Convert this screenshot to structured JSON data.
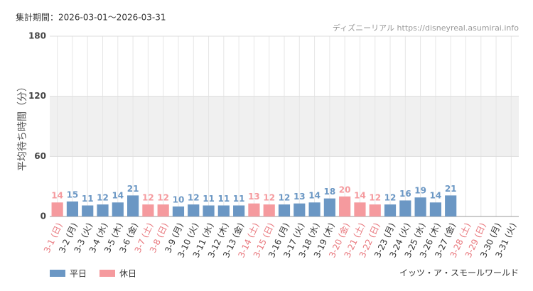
{
  "chart_data": {
    "type": "bar",
    "title": "集計期間：2026-03-01～2026-03-31",
    "source": "ディズニーリアル https://disneyreal.asumirai.info",
    "subtitle": "イッツ・ア・スモールワールド",
    "y_label": "平均待ち時間（分）",
    "categories": [
      "3-1 (日)",
      "3-2 (月)",
      "3-3 (火)",
      "3-4 (水)",
      "3-5 (木)",
      "3-6 (金)",
      "3-7 (土)",
      "3-8 (日)",
      "3-9 (月)",
      "3-10 (火)",
      "3-11 (水)",
      "3-12 (木)",
      "3-13 (金)",
      "3-14 (土)",
      "3-15 (日)",
      "3-16 (月)",
      "3-17 (火)",
      "3-18 (水)",
      "3-19 (木)",
      "3-20 (金)",
      "3-21 (土)",
      "3-22 (日)",
      "3-23 (月)",
      "3-24 (火)",
      "3-25 (水)",
      "3-26 (木)",
      "3-27 (金)",
      "3-28 (土)",
      "3-29 (日)",
      "3-30 (月)",
      "3-31 (火)"
    ],
    "category_colors": [
      "#e8767c",
      "#333333",
      "#333333",
      "#333333",
      "#333333",
      "#333333",
      "#e8767c",
      "#e8767c",
      "#333333",
      "#333333",
      "#333333",
      "#333333",
      "#333333",
      "#e8767c",
      "#e8767c",
      "#333333",
      "#333333",
      "#333333",
      "#333333",
      "#e8767c",
      "#e8767c",
      "#e8767c",
      "#333333",
      "#333333",
      "#333333",
      "#333333",
      "#333333",
      "#e8767c",
      "#e8767c",
      "#333333",
      "#333333"
    ],
    "series": [
      {
        "name": "平日",
        "color": "#6b97c4",
        "values": [
          null,
          15,
          11,
          12,
          14,
          21,
          null,
          null,
          10,
          12,
          11,
          11,
          11,
          null,
          null,
          12,
          13,
          14,
          18,
          null,
          null,
          null,
          12,
          16,
          19,
          14,
          21,
          null,
          null,
          null,
          null
        ]
      },
      {
        "name": "休日",
        "color": "#f59a9e",
        "values": [
          14,
          null,
          null,
          null,
          null,
          null,
          12,
          12,
          null,
          null,
          null,
          null,
          null,
          13,
          12,
          null,
          null,
          null,
          null,
          20,
          14,
          12,
          null,
          null,
          null,
          null,
          null,
          null,
          null,
          null,
          null
        ]
      }
    ],
    "ylim": [
      0,
      180
    ],
    "yticks": [
      0,
      60,
      120,
      180
    ],
    "grid": true,
    "shade_alternate": true
  }
}
